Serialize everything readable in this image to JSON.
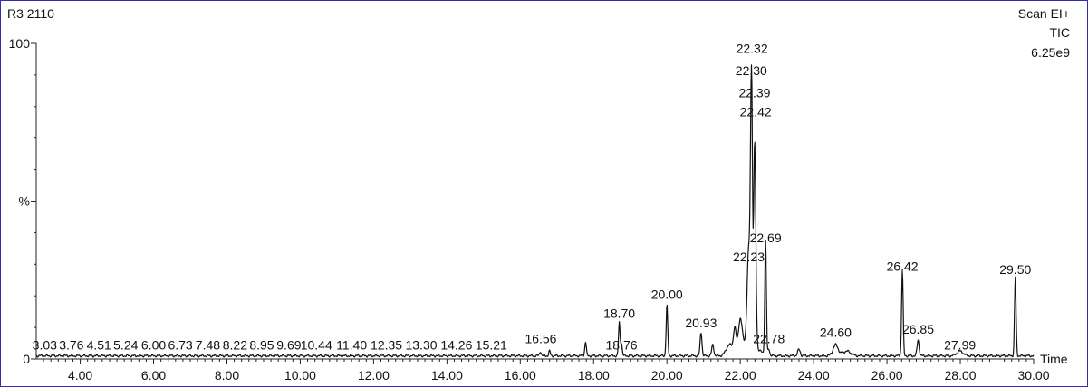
{
  "header": {
    "sample": "R3 2110",
    "scan": "Scan  EI+",
    "mode": "TIC",
    "max_intensity": "6.25e9"
  },
  "chart_data": {
    "type": "line",
    "title": "",
    "xlabel": "Time",
    "ylabel": "%",
    "xlim": [
      2.8,
      30.0
    ],
    "ylim": [
      0,
      100
    ],
    "y_ticks": [
      {
        "value": 0,
        "label": "0"
      },
      {
        "value": 50,
        "label": "%"
      },
      {
        "value": 100,
        "label": "100"
      }
    ],
    "x_ticks": [
      "4.00",
      "6.00",
      "8.00",
      "10.00",
      "12.00",
      "14.00",
      "16.00",
      "18.00",
      "20.00",
      "22.00",
      "24.00",
      "26.00",
      "28.00",
      "30.00"
    ],
    "baseline": 1.0,
    "series": [
      {
        "peaks": [
          {
            "rt": 16.55,
            "h": 1.5,
            "w": 0.03
          },
          {
            "rt": 16.8,
            "h": 1.5,
            "w": 0.03
          },
          {
            "rt": 17.78,
            "h": 4.5,
            "w": 0.03
          },
          {
            "rt": 18.7,
            "h": 10.5,
            "w": 0.03
          },
          {
            "rt": 18.76,
            "h": 4.0,
            "w": 0.03
          },
          {
            "rt": 20.0,
            "h": 16.0,
            "w": 0.03
          },
          {
            "rt": 20.93,
            "h": 7.5,
            "w": 0.035
          },
          {
            "rt": 21.25,
            "h": 3.5,
            "w": 0.04
          },
          {
            "rt": 21.7,
            "h": 3.0,
            "w": 0.12
          },
          {
            "rt": 21.85,
            "h": 7.0,
            "w": 0.05
          },
          {
            "rt": 22.0,
            "h": 9.0,
            "w": 0.07
          },
          {
            "rt": 22.23,
            "h": 30.0,
            "w": 0.06
          },
          {
            "rt": 22.3,
            "h": 68.0,
            "w": 0.035
          },
          {
            "rt": 22.32,
            "h": 22.0,
            "w": 0.025
          },
          {
            "rt": 22.39,
            "h": 60.0,
            "w": 0.04
          },
          {
            "rt": 22.42,
            "h": 8.0,
            "w": 0.04
          },
          {
            "rt": 22.69,
            "h": 36.0,
            "w": 0.03
          },
          {
            "rt": 22.78,
            "h": 2.0,
            "w": 0.03
          },
          {
            "rt": 23.6,
            "h": 2.0,
            "w": 0.05
          },
          {
            "rt": 24.6,
            "h": 3.5,
            "w": 0.1
          },
          {
            "rt": 24.9,
            "h": 1.5,
            "w": 0.15
          },
          {
            "rt": 26.42,
            "h": 27.0,
            "w": 0.03
          },
          {
            "rt": 26.85,
            "h": 5.0,
            "w": 0.04
          },
          {
            "rt": 27.99,
            "h": 1.5,
            "w": 0.12
          },
          {
            "rt": 29.5,
            "h": 25.0,
            "w": 0.03
          }
        ]
      }
    ],
    "peak_labels": [
      {
        "text": "3.03",
        "rt": 3.03,
        "y": 3
      },
      {
        "text": "3.76",
        "rt": 3.76,
        "y": 3
      },
      {
        "text": "4.51",
        "rt": 4.51,
        "y": 3
      },
      {
        "text": "5.24",
        "rt": 5.24,
        "y": 3
      },
      {
        "text": "6.00",
        "rt": 6.0,
        "y": 3
      },
      {
        "text": "6.73",
        "rt": 6.73,
        "y": 3
      },
      {
        "text": "7.48",
        "rt": 7.48,
        "y": 3
      },
      {
        "text": "8.22",
        "rt": 8.22,
        "y": 3
      },
      {
        "text": "8.95",
        "rt": 8.95,
        "y": 3
      },
      {
        "text": "9.69",
        "rt": 9.69,
        "y": 3
      },
      {
        "text": "10.44",
        "rt": 10.44,
        "y": 3
      },
      {
        "text": "11.40",
        "rt": 11.4,
        "y": 3
      },
      {
        "text": "12.35",
        "rt": 12.35,
        "y": 3
      },
      {
        "text": "13.30",
        "rt": 13.3,
        "y": 3
      },
      {
        "text": "14.26",
        "rt": 14.26,
        "y": 3
      },
      {
        "text": "15.21",
        "rt": 15.21,
        "y": 3
      },
      {
        "text": "16.56",
        "rt": 16.56,
        "y": 5
      },
      {
        "text": "18.70",
        "rt": 18.7,
        "y": 13
      },
      {
        "text": "18.76",
        "rt": 18.76,
        "y": 3
      },
      {
        "text": "20.00",
        "rt": 20.0,
        "y": 19
      },
      {
        "text": "20.93",
        "rt": 20.93,
        "y": 10
      },
      {
        "text": "22.23",
        "rt": 22.23,
        "y": 31
      },
      {
        "text": "22.30",
        "rt": 22.3,
        "y": 90
      },
      {
        "text": "22.32",
        "rt": 22.32,
        "y": 97
      },
      {
        "text": "22.39",
        "rt": 22.39,
        "y": 83
      },
      {
        "text": "22.42",
        "rt": 22.42,
        "y": 77
      },
      {
        "text": "22.69",
        "rt": 22.69,
        "y": 37
      },
      {
        "text": "22.78",
        "rt": 22.78,
        "y": 5
      },
      {
        "text": "24.60",
        "rt": 24.6,
        "y": 7
      },
      {
        "text": "26.42",
        "rt": 26.42,
        "y": 28
      },
      {
        "text": "26.85",
        "rt": 26.85,
        "y": 8
      },
      {
        "text": "27.99",
        "rt": 27.99,
        "y": 3
      },
      {
        "text": "29.50",
        "rt": 29.5,
        "y": 27
      }
    ]
  }
}
